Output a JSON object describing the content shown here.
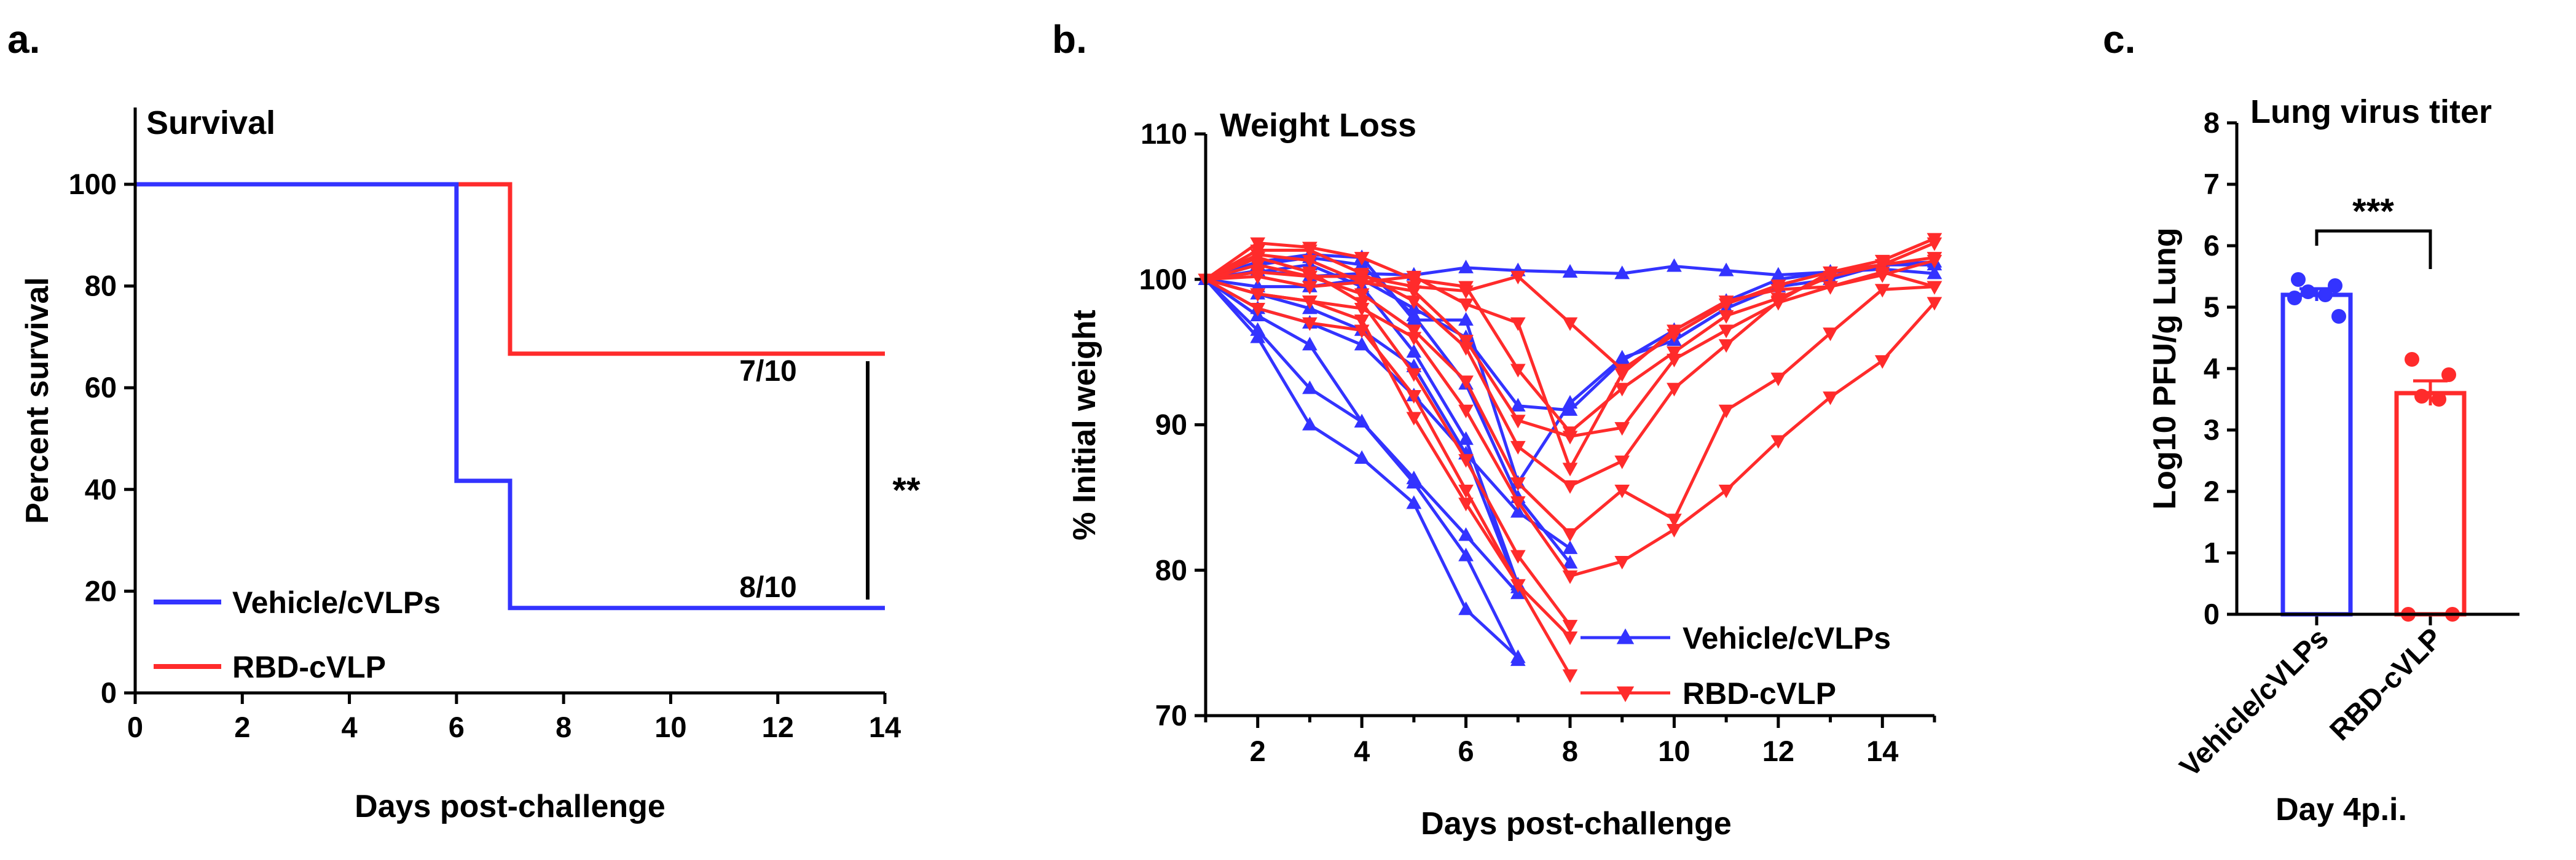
{
  "colors": {
    "vehicle": "#3333ff",
    "rbd": "#ff2b2b"
  },
  "chart_data": [
    {
      "panel": "a.",
      "type": "line",
      "subtype": "kaplan-meier-step",
      "title": "Survival",
      "xlabel": "Days post-challenge",
      "ylabel": "Percent survival",
      "xlim": [
        0,
        14
      ],
      "ylim": [
        0,
        100
      ],
      "xticks": [
        0,
        2,
        4,
        6,
        8,
        10,
        12,
        14
      ],
      "yticks": [
        0,
        20,
        40,
        60,
        80,
        100
      ],
      "series": [
        {
          "name": "Vehicle/cVLPs",
          "color_key": "vehicle",
          "x": [
            0,
            6,
            6,
            7,
            7,
            14
          ],
          "y": [
            100,
            100,
            41.7,
            41.7,
            16.7,
            16.7
          ]
        },
        {
          "name": "RBD-cVLP",
          "color_key": "rbd",
          "x": [
            0,
            7,
            7,
            14
          ],
          "y": [
            100,
            100,
            66.7,
            66.7
          ]
        }
      ],
      "annotations": {
        "rbd_label": "7/10",
        "vehicle_label": "8/10",
        "significance": "**"
      },
      "legend": "bottom-left"
    },
    {
      "panel": "b.",
      "type": "line",
      "title": "Weight Loss",
      "xlabel": "Days post-challenge",
      "ylabel": "% Initial weight",
      "xlim": [
        1,
        15
      ],
      "ylim": [
        70,
        110
      ],
      "xticks": [
        2,
        4,
        6,
        8,
        10,
        12,
        14
      ],
      "yticks": [
        70,
        80,
        90,
        100,
        110
      ],
      "legend": "bottom-right",
      "legend_entries": [
        "Vehicle/cVLPs",
        "RBD-cVLP"
      ],
      "series": [
        {
          "name": "Vehicle/cVLPs",
          "color_key": "vehicle",
          "marker": "triangle-up",
          "x": [
            1,
            2,
            3,
            4,
            5,
            6,
            7
          ],
          "y": [
            100,
            96.5,
            92.5,
            90.2,
            86,
            81,
            73.8
          ]
        },
        {
          "name": "Vehicle/cVLPs",
          "color_key": "vehicle",
          "marker": "triangle-up",
          "x": [
            1,
            2,
            3,
            4,
            5,
            6,
            7
          ],
          "y": [
            100,
            96,
            90,
            87.7,
            84.6,
            77.3,
            74
          ]
        },
        {
          "name": "Vehicle/cVLPs",
          "color_key": "vehicle",
          "marker": "triangle-up",
          "x": [
            1,
            2,
            3,
            4,
            5,
            6,
            7
          ],
          "y": [
            100,
            97.5,
            95.5,
            90.2,
            86.3,
            82.4,
            78.4
          ]
        },
        {
          "name": "Vehicle/cVLPs",
          "color_key": "vehicle",
          "marker": "triangle-up",
          "x": [
            1,
            2,
            3,
            4,
            5,
            6,
            7,
            8
          ],
          "y": [
            100,
            99,
            98,
            96.5,
            94,
            88,
            84,
            81.5
          ]
        },
        {
          "name": "Vehicle/cVLPs",
          "color_key": "vehicle",
          "marker": "triangle-up",
          "x": [
            1,
            2,
            3,
            4,
            5,
            6,
            7
          ],
          "y": [
            100,
            100.5,
            101,
            99.5,
            95,
            89,
            79
          ]
        },
        {
          "name": "Vehicle/cVLPs",
          "color_key": "vehicle",
          "marker": "triangle-up",
          "x": [
            1,
            2,
            3,
            4,
            5,
            6,
            7,
            8
          ],
          "y": [
            100,
            101,
            101.5,
            101,
            97.5,
            92.8,
            85,
            80.5
          ]
        },
        {
          "name": "Vehicle/cVLPs",
          "color_key": "vehicle",
          "marker": "triangle-up",
          "x": [
            1,
            2,
            3,
            4,
            5,
            6,
            7,
            8,
            9,
            10,
            11,
            12,
            13,
            14,
            15
          ],
          "y": [
            100,
            101.2,
            101.7,
            101.5,
            97.2,
            97.2,
            86,
            91.5,
            94.6,
            95.8,
            98,
            99.5,
            100,
            101,
            101
          ]
        },
        {
          "name": "Vehicle/cVLPs",
          "color_key": "vehicle",
          "marker": "triangle-up",
          "x": [
            1,
            2,
            3,
            4,
            5,
            6,
            7,
            8,
            9,
            10,
            11,
            12,
            13,
            14,
            15
          ],
          "y": [
            100,
            99.5,
            99.5,
            100,
            98,
            96,
            91.3,
            91,
            94.4,
            96.5,
            98.5,
            100,
            100.5,
            101,
            101.2
          ]
        },
        {
          "name": "Vehicle/cVLPs",
          "color_key": "vehicle",
          "marker": "triangle-up",
          "x": [
            1,
            2,
            3,
            4,
            5,
            6,
            7,
            8,
            9,
            10,
            11,
            12,
            13,
            14,
            15
          ],
          "y": [
            100,
            100.6,
            100.2,
            100.4,
            100.3,
            100.8,
            100.6,
            100.5,
            100.4,
            100.9,
            100.6,
            100.3,
            100.5,
            100.7,
            100.4
          ]
        },
        {
          "name": "Vehicle/cVLPs",
          "color_key": "vehicle",
          "marker": "triangle-up",
          "x": [
            1,
            2,
            3,
            4,
            5,
            6,
            7
          ],
          "y": [
            100,
            98,
            97,
            95.5,
            92,
            88,
            78.8
          ]
        },
        {
          "name": "RBD-cVLP",
          "color_key": "rbd",
          "marker": "triangle-down",
          "x": [
            1,
            2,
            3,
            4,
            5,
            6,
            7,
            8
          ],
          "y": [
            100,
            98,
            97,
            96.5,
            92,
            85.5,
            79,
            72.8
          ]
        },
        {
          "name": "RBD-cVLP",
          "color_key": "rbd",
          "marker": "triangle-down",
          "x": [
            1,
            2,
            3,
            4,
            5,
            6,
            7,
            8
          ],
          "y": [
            100,
            99,
            98.5,
            97.2,
            90.5,
            84.6,
            79,
            75.4
          ]
        },
        {
          "name": "RBD-cVLP",
          "color_key": "rbd",
          "marker": "triangle-down",
          "x": [
            1,
            2,
            3,
            4,
            5,
            6,
            7,
            8
          ],
          "y": [
            100,
            101.5,
            100.5,
            98.4,
            93.5,
            87.6,
            81,
            76.2
          ]
        },
        {
          "name": "RBD-cVLP",
          "color_key": "rbd",
          "marker": "triangle-down",
          "x": [
            1,
            2,
            3,
            4,
            5,
            6,
            7,
            8,
            9,
            10,
            11,
            12,
            13,
            14,
            15
          ],
          "y": [
            100,
            99,
            98.5,
            98,
            96,
            91,
            84.7,
            79.6,
            80.6,
            82.8,
            85.5,
            88.9,
            91.9,
            94.4,
            98.4
          ]
        },
        {
          "name": "RBD-cVLP",
          "color_key": "rbd",
          "marker": "triangle-down",
          "x": [
            1,
            2,
            3,
            4,
            5,
            6,
            7,
            8,
            9,
            10,
            11,
            12,
            13,
            14,
            15
          ],
          "y": [
            100,
            100.5,
            100.2,
            99,
            96.5,
            93,
            86,
            82.5,
            85.5,
            83.5,
            91,
            93.2,
            96.3,
            99.3,
            99.5
          ]
        },
        {
          "name": "RBD-cVLP",
          "color_key": "rbd",
          "marker": "triangle-down",
          "x": [
            1,
            2,
            3,
            4,
            5,
            6,
            7,
            8,
            9,
            10,
            11,
            12,
            13,
            14,
            15
          ],
          "y": [
            100,
            102,
            102,
            100.4,
            98.5,
            95.3,
            88.5,
            85.8,
            87.5,
            92.5,
            95.5,
            98.5,
            100.5,
            101,
            102.5
          ]
        },
        {
          "name": "RBD-cVLP",
          "color_key": "rbd",
          "marker": "triangle-down",
          "x": [
            1,
            2,
            3,
            4,
            5,
            6,
            7,
            8,
            9,
            10,
            11,
            12,
            13,
            14,
            15
          ],
          "y": [
            100,
            101.7,
            101.3,
            99.8,
            99.2,
            95.8,
            90.3,
            89.2,
            89.8,
            94.5,
            96.5,
            98.4,
            99.5,
            100.3,
            101.3
          ]
        },
        {
          "name": "RBD-cVLP",
          "color_key": "rbd",
          "marker": "triangle-down",
          "x": [
            1,
            2,
            3,
            4,
            5,
            6,
            7,
            8,
            9,
            10,
            11,
            12,
            13,
            14,
            15
          ],
          "y": [
            100,
            102.5,
            102.2,
            101.5,
            100,
            99.5,
            93.8,
            89.5,
            92.5,
            95,
            97.5,
            98.7,
            100.2,
            101,
            101.5
          ]
        },
        {
          "name": "RBD-cVLP",
          "color_key": "rbd",
          "marker": "triangle-down",
          "x": [
            1,
            2,
            3,
            4,
            5,
            6,
            7,
            8,
            9,
            10,
            11,
            12,
            13,
            14,
            15
          ],
          "y": [
            100,
            101,
            100.2,
            100.2,
            99.5,
            99.2,
            100.2,
            97,
            93.8,
            96.2,
            98.3,
            99.6,
            100.5,
            101.3,
            102.8
          ]
        },
        {
          "name": "RBD-cVLP",
          "color_key": "rbd",
          "marker": "triangle-down",
          "x": [
            1,
            2,
            3,
            4,
            5,
            6,
            7,
            8,
            9,
            10,
            11,
            12,
            13,
            14,
            15
          ],
          "y": [
            100,
            100.2,
            99.5,
            99.8,
            100.2,
            98.3,
            97,
            87,
            93.5,
            96.5,
            98.5,
            99.3,
            99.5,
            100.5,
            99.5
          ]
        }
      ]
    },
    {
      "panel": "c.",
      "type": "bar",
      "title": "Lung virus titer",
      "xlabel": "Day 4p.i.",
      "ylabel": "Log10 PFU/g Lung",
      "ylim": [
        0,
        8
      ],
      "yticks": [
        0,
        1,
        2,
        3,
        4,
        5,
        6,
        7,
        8
      ],
      "categories": [
        "Vehicle/cVLPs",
        "RBD-cVLP"
      ],
      "values": [
        5.2,
        3.6
      ],
      "errors": [
        0.1,
        0.2
      ],
      "points": [
        [
          5.45,
          5.35,
          5.25,
          5.2,
          5.15,
          4.85
        ],
        [
          4.15,
          3.9,
          3.55,
          3.5,
          0,
          0
        ]
      ],
      "significance": "***"
    }
  ]
}
